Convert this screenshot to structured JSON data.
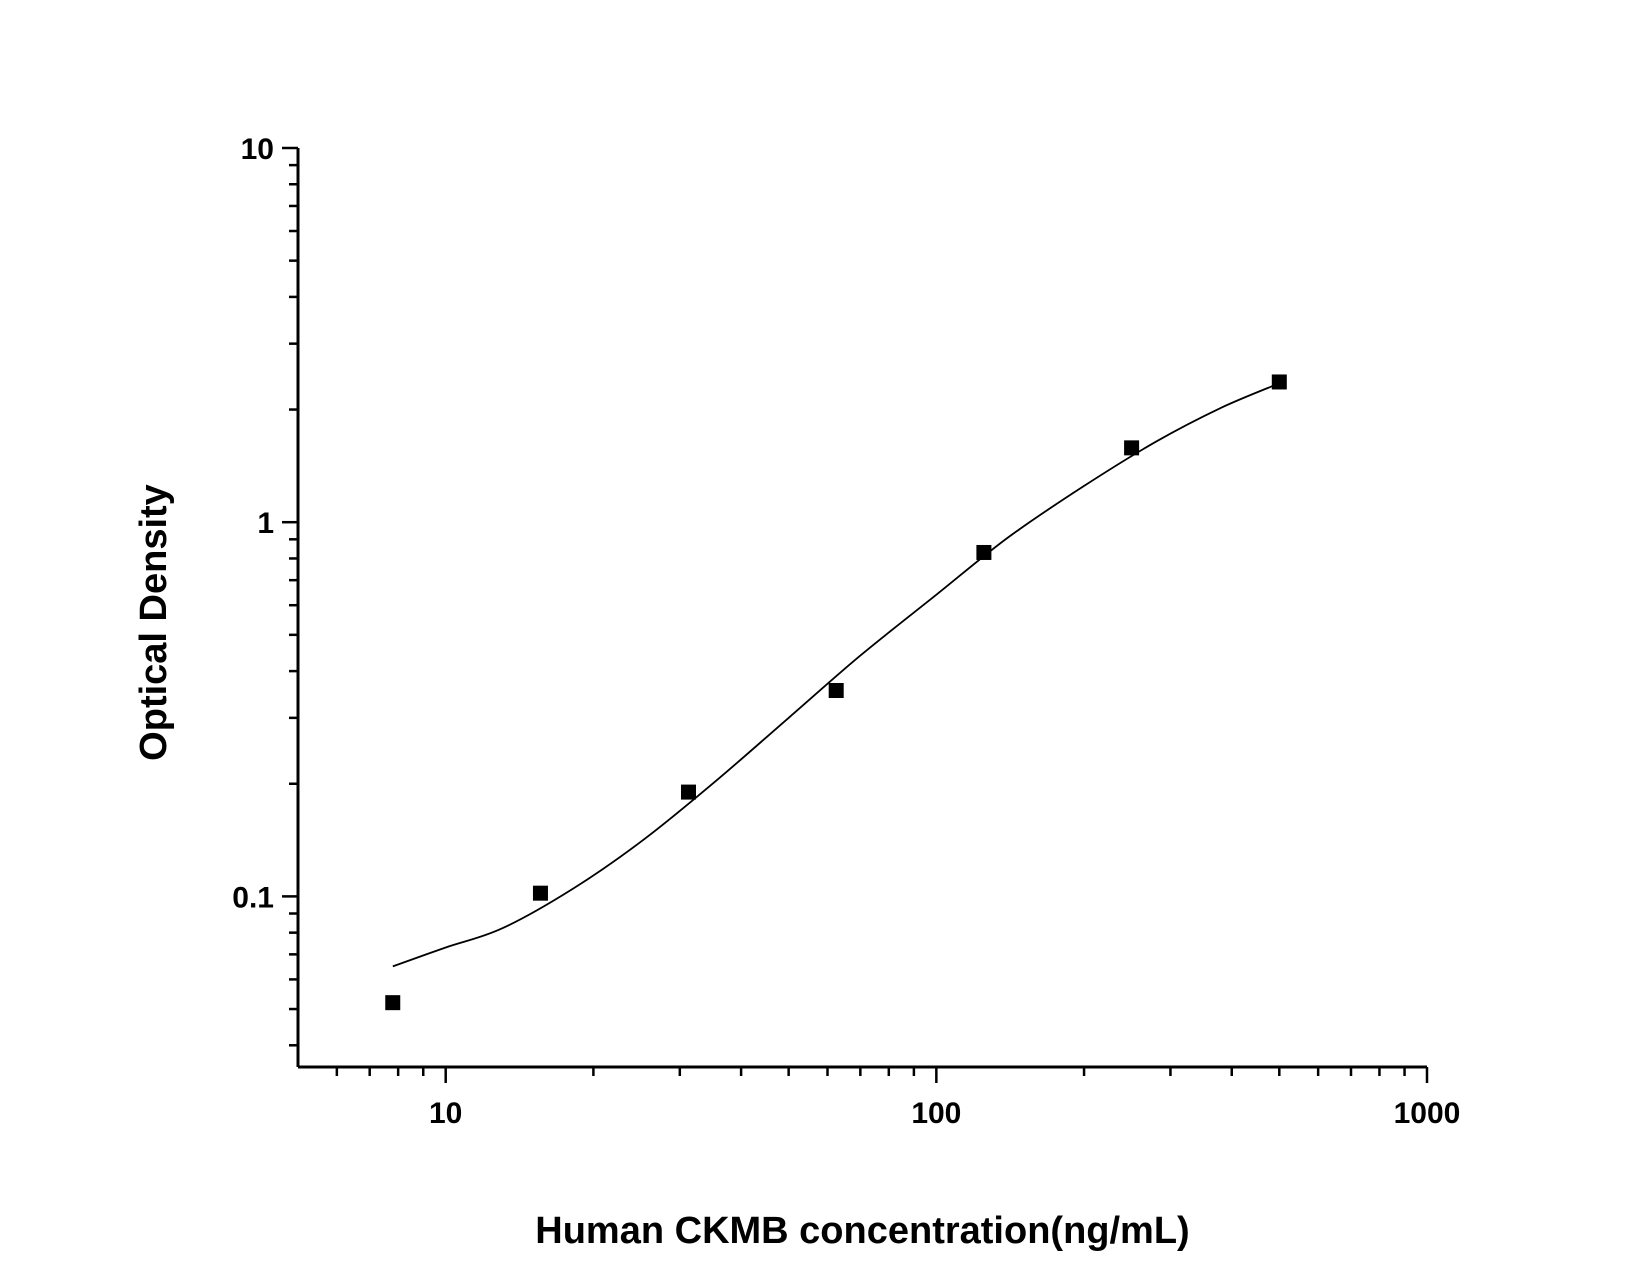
{
  "chart_data": {
    "type": "scatter",
    "xlabel": "Human CKMB concentration(ng/mL)",
    "ylabel": "Optical Density",
    "x_scale": "log",
    "y_scale": "log",
    "xlim": [
      5,
      1000
    ],
    "ylim": [
      0.035,
      10
    ],
    "x_ticks": [
      {
        "value": 10,
        "label": "10"
      },
      {
        "value": 100,
        "label": "100"
      },
      {
        "value": 1000,
        "label": "1000"
      }
    ],
    "y_ticks": [
      {
        "value": 0.1,
        "label": "0.1"
      },
      {
        "value": 1,
        "label": "1"
      },
      {
        "value": 10,
        "label": "10"
      }
    ],
    "grid": false,
    "series": [
      {
        "marker": "square",
        "color": "#000000",
        "x": [
          7.8,
          15.6,
          31.25,
          62.5,
          125,
          250,
          500
        ],
        "y": [
          0.052,
          0.102,
          0.19,
          0.355,
          0.83,
          1.58,
          2.37
        ]
      }
    ],
    "fit_curve": {
      "x": [
        7.8,
        10,
        13,
        18,
        25,
        35,
        50,
        70,
        100,
        140,
        200,
        280,
        380,
        500
      ],
      "y": [
        0.065,
        0.073,
        0.082,
        0.104,
        0.14,
        0.2,
        0.3,
        0.44,
        0.64,
        0.91,
        1.25,
        1.64,
        2.02,
        2.35
      ]
    },
    "x_minor_ticks": [
      6,
      7,
      8,
      9,
      20,
      30,
      40,
      50,
      60,
      70,
      80,
      90,
      200,
      300,
      400,
      500,
      600,
      700,
      800,
      900
    ],
    "y_minor_ticks": [
      0.04,
      0.05,
      0.06,
      0.07,
      0.08,
      0.09,
      0.2,
      0.3,
      0.4,
      0.5,
      0.6,
      0.7,
      0.8,
      0.9,
      2,
      3,
      4,
      5,
      6,
      7,
      8,
      9
    ]
  }
}
